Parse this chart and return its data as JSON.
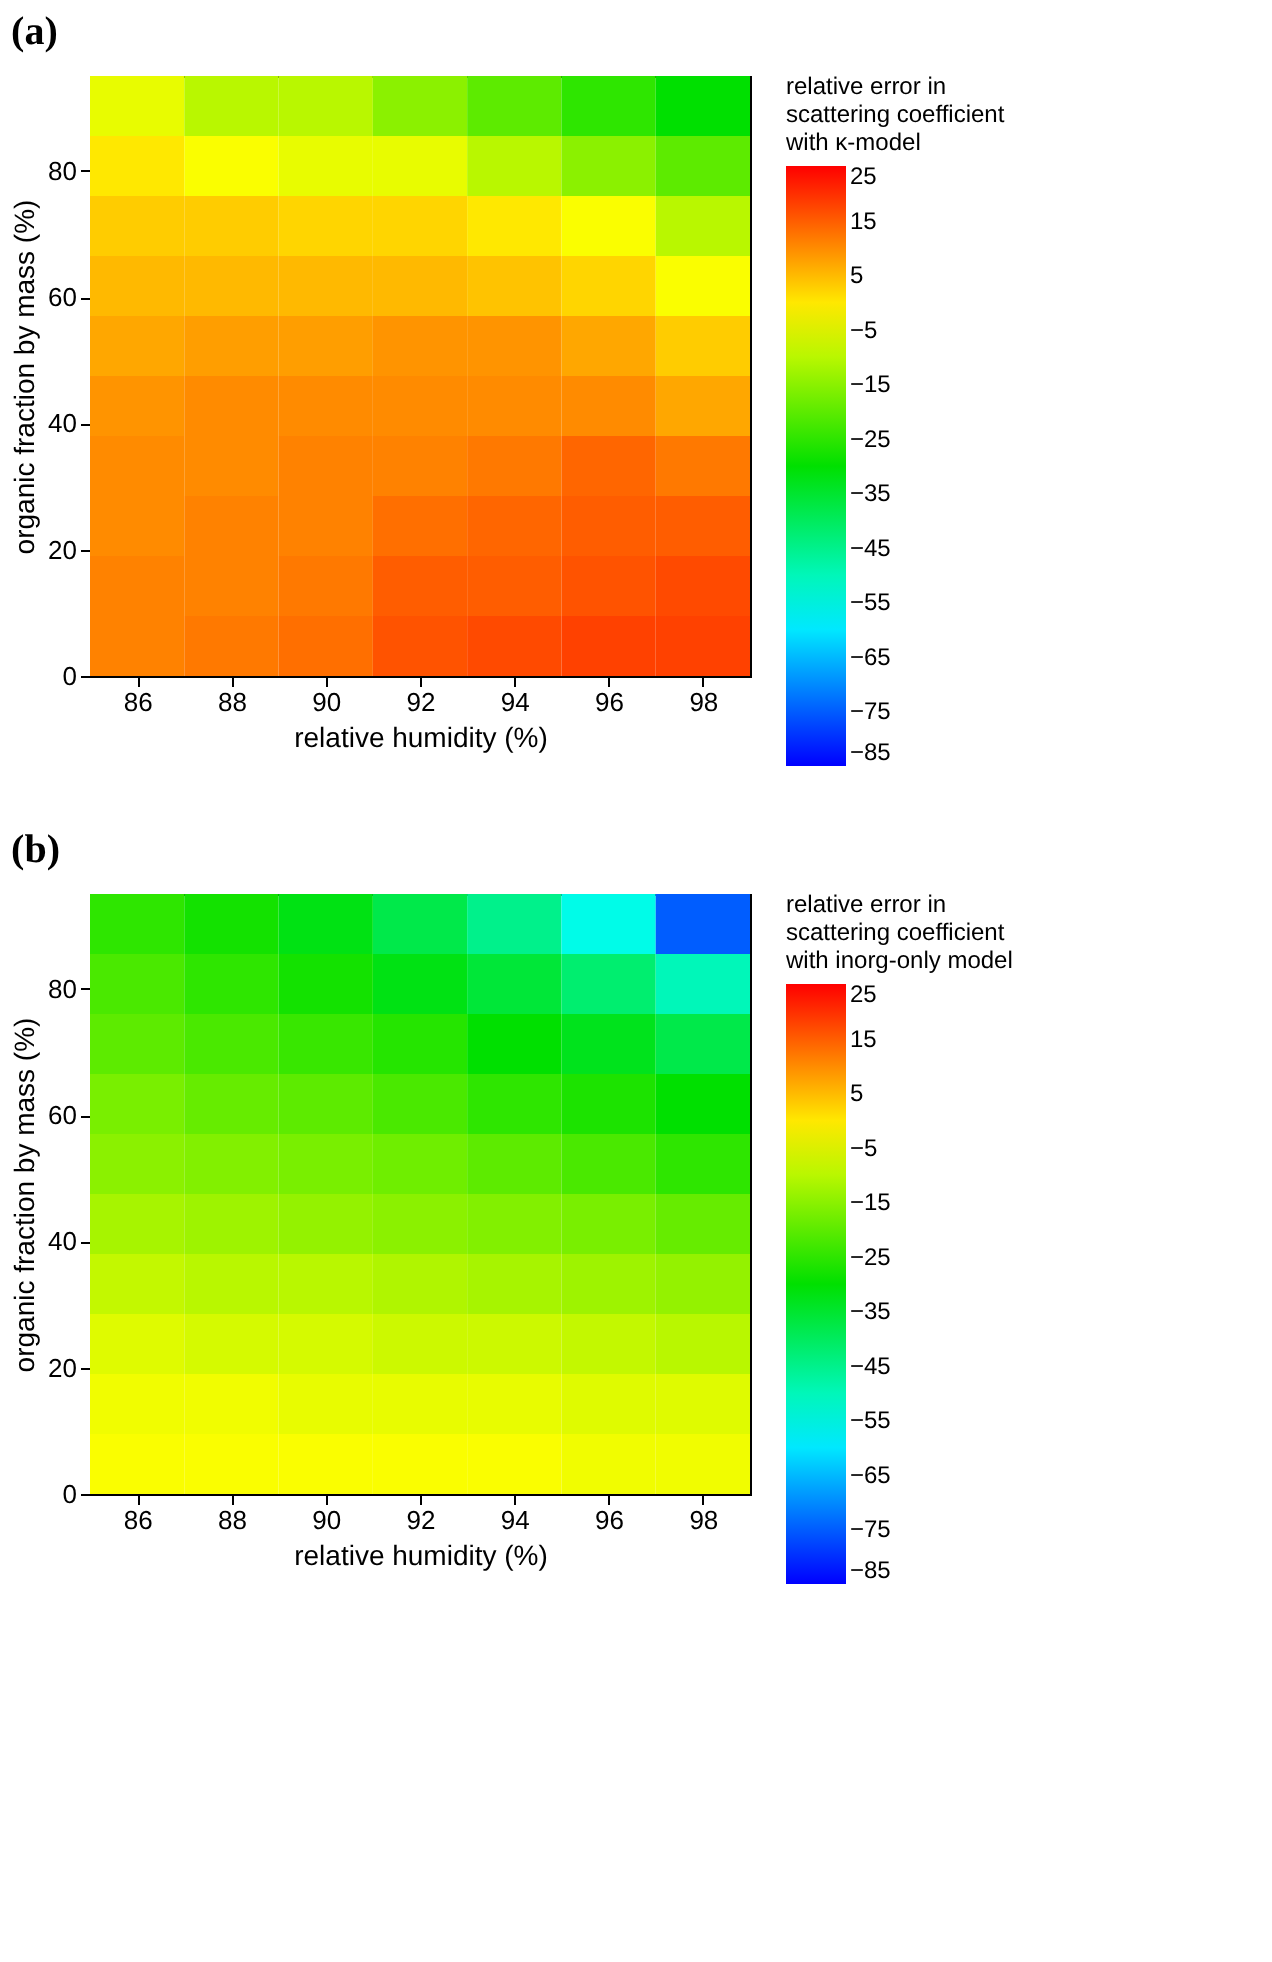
{
  "chart_data": [
    {
      "type": "heatmap",
      "title": "(a)",
      "xlabel": "relative humidity (%)",
      "ylabel": "organic fraction by mass (%)",
      "clabel": "relative error in scattering coefficient with κ-model",
      "xlim": [
        85,
        99
      ],
      "xticks": [
        86,
        88,
        90,
        92,
        94,
        96,
        98
      ],
      "ylim": [
        0,
        95
      ],
      "yticks": [
        0,
        20,
        40,
        60,
        80
      ],
      "grid": false,
      "clim": [
        -85,
        25
      ],
      "cticks": [
        -85,
        -75,
        -65,
        -55,
        -45,
        -35,
        -25,
        -15,
        -5,
        5,
        15,
        25
      ],
      "colors": [
        "#0000ff",
        "#00ffff",
        "#00e000",
        "#ffff00",
        "#ff0000"
      ],
      "cells": [
        [
          -5,
          -10,
          -10,
          -15,
          -20,
          -25,
          -30
        ],
        [
          0,
          -3,
          -5,
          -5,
          -10,
          -15,
          -20
        ],
        [
          3,
          3,
          2,
          2,
          0,
          -3,
          -10
        ],
        [
          5,
          5,
          5,
          5,
          4,
          2,
          -3
        ],
        [
          7,
          8,
          8,
          9,
          9,
          7,
          3
        ],
        [
          9,
          10,
          10,
          10,
          10,
          10,
          7
        ],
        [
          10,
          10,
          11,
          11,
          12,
          14,
          12
        ],
        [
          10,
          11,
          11,
          13,
          14,
          15,
          15
        ],
        [
          11,
          11,
          12,
          15,
          15,
          16,
          17
        ],
        [
          11,
          12,
          13,
          16,
          17,
          18,
          18
        ]
      ]
    },
    {
      "type": "heatmap",
      "title": "(b)",
      "xlabel": "relative humidity (%)",
      "ylabel": "organic fraction by mass (%)",
      "clabel": "relative error in scattering coefficient with inorg-only model",
      "xlim": [
        85,
        99
      ],
      "xticks": [
        86,
        88,
        90,
        92,
        94,
        96,
        98
      ],
      "ylim": [
        0,
        95
      ],
      "yticks": [
        0,
        20,
        40,
        60,
        80
      ],
      "grid": false,
      "clim": [
        -85,
        25
      ],
      "cticks": [
        -85,
        -75,
        -65,
        -55,
        -45,
        -35,
        -25,
        -15,
        -5,
        5,
        15,
        25
      ],
      "colors": [
        "#0000ff",
        "#00ffff",
        "#00e000",
        "#ffff00",
        "#ff0000"
      ],
      "cells": [
        [
          -25,
          -28,
          -32,
          -38,
          -45,
          -55,
          -75
        ],
        [
          -22,
          -25,
          -28,
          -32,
          -36,
          -42,
          -50
        ],
        [
          -20,
          -22,
          -24,
          -26,
          -30,
          -33,
          -38
        ],
        [
          -17,
          -19,
          -20,
          -22,
          -25,
          -27,
          -30
        ],
        [
          -15,
          -16,
          -17,
          -18,
          -20,
          -22,
          -25
        ],
        [
          -12,
          -13,
          -14,
          -15,
          -16,
          -17,
          -19
        ],
        [
          -9,
          -10,
          -10,
          -11,
          -12,
          -13,
          -14
        ],
        [
          -6,
          -7,
          -7,
          -8,
          -8,
          -9,
          -10
        ],
        [
          -4,
          -4,
          -5,
          -5,
          -5,
          -6,
          -6
        ],
        [
          -3,
          -3,
          -3,
          -3,
          -3,
          -4,
          -4
        ]
      ]
    }
  ]
}
